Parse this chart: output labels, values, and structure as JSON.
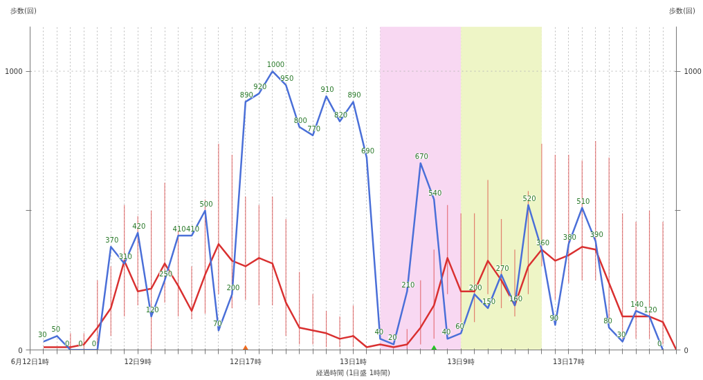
{
  "chart_data": {
    "type": "line",
    "xlabel": "経過時間 (1目盛 1時間)",
    "ylabel": "歩数(回)",
    "y2label": "歩数(回)",
    "categories": [
      "6月12日1時",
      null,
      null,
      null,
      null,
      null,
      null,
      null,
      "12日9時",
      null,
      null,
      null,
      null,
      null,
      null,
      null,
      "12日17時",
      null,
      null,
      null,
      null,
      null,
      null,
      null,
      "13日1時",
      null,
      null,
      null,
      null,
      null,
      null,
      null,
      "13日9時",
      null,
      null,
      null,
      null,
      null,
      null,
      null,
      "13日17時",
      null,
      null,
      null,
      null,
      null,
      null,
      null,
      null
    ],
    "ylim": [
      0,
      1160
    ],
    "y2lim": [
      0,
      1160
    ],
    "yticks": [
      0,
      {
        "value": 500,
        "label": null
      },
      1000
    ],
    "y2ticks": [
      0,
      {
        "value": 500,
        "label": null
      },
      1000
    ],
    "grid": "x",
    "marker": "none",
    "line_style": "solid",
    "ref_lines": [
      {
        "axis": "y",
        "value": 1000,
        "label": null,
        "color": "#bbbbbb",
        "line_style": "dotted"
      }
    ],
    "series": [
      {
        "color": "#d93030",
        "values": [
          null,
          10,
          10,
          10,
          20,
          80,
          150,
          320,
          210,
          220,
          310,
          230,
          140,
          270,
          380,
          320,
          300,
          330,
          310,
          170,
          80,
          70,
          60,
          40,
          50,
          10,
          20,
          10,
          20,
          80,
          160,
          330,
          210,
          210,
          320,
          250,
          160,
          300,
          360,
          320,
          340,
          370,
          360,
          240,
          120,
          120,
          120,
          100,
          0
        ],
        "errors": [
          null,
          null,
          null,
          [
            0,
            60
          ],
          [
            0,
            60
          ],
          [
            0,
            250
          ],
          [
            50,
            300
          ],
          [
            120,
            520
          ],
          [
            160,
            480
          ],
          [
            0,
            500
          ],
          [
            170,
            600
          ],
          [
            120,
            440
          ],
          [
            110,
            300
          ],
          [
            130,
            540
          ],
          [
            200,
            740
          ],
          [
            150,
            700
          ],
          [
            180,
            550
          ],
          [
            160,
            520
          ],
          [
            160,
            550
          ],
          [
            50,
            470
          ],
          [
            20,
            280
          ],
          [
            20,
            200
          ],
          [
            10,
            140
          ],
          [
            10,
            120
          ],
          [
            10,
            160
          ],
          null,
          null,
          null,
          [
            0,
            75
          ],
          [
            20,
            250
          ],
          [
            40,
            360
          ],
          [
            200,
            520
          ],
          [
            100,
            490
          ],
          [
            100,
            490
          ],
          [
            200,
            610
          ],
          [
            150,
            470
          ],
          [
            120,
            360
          ],
          [
            200,
            570
          ],
          [
            300,
            740
          ],
          [
            180,
            700
          ],
          [
            240,
            700
          ],
          [
            250,
            680
          ],
          [
            250,
            750
          ],
          [
            100,
            690
          ],
          [
            40,
            490
          ],
          [
            40,
            460
          ],
          [
            40,
            500
          ],
          [
            20,
            460
          ],
          null
        ]
      },
      {
        "color": "#4a6fd8",
        "data_labels": true,
        "values": [
          null,
          30,
          50,
          0,
          0,
          0,
          370,
          310,
          420,
          120,
          250,
          410,
          410,
          500,
          70,
          200,
          890,
          920,
          1000,
          950,
          800,
          770,
          910,
          820,
          890,
          690,
          40,
          20,
          210,
          670,
          540,
          40,
          60,
          200,
          150,
          270,
          160,
          520,
          360,
          90,
          380,
          510,
          390,
          80,
          30,
          140,
          120,
          0,
          null
        ]
      },
      {
        "type": "scatter",
        "marker": "triangle",
        "colors": [
          null,
          null,
          null,
          null,
          null,
          null,
          null,
          null,
          null,
          null,
          null,
          null,
          null,
          null,
          null,
          null,
          "#f26b1d",
          null,
          null,
          null,
          null,
          null,
          null,
          null,
          null,
          null,
          null,
          null,
          null,
          null,
          "#22c522",
          null,
          null,
          null,
          null,
          null,
          null,
          null,
          null,
          null,
          null,
          null,
          null,
          null,
          null,
          null,
          null,
          null,
          null
        ],
        "values": [
          null,
          null,
          null,
          null,
          null,
          null,
          null,
          null,
          null,
          null,
          null,
          null,
          null,
          null,
          null,
          null,
          0,
          null,
          null,
          null,
          null,
          null,
          null,
          null,
          null,
          null,
          null,
          null,
          null,
          null,
          0,
          null,
          null,
          null,
          null,
          null,
          null,
          null,
          null,
          null,
          null,
          null,
          null,
          null,
          null,
          null,
          null,
          null,
          null
        ]
      }
    ]
  }
}
